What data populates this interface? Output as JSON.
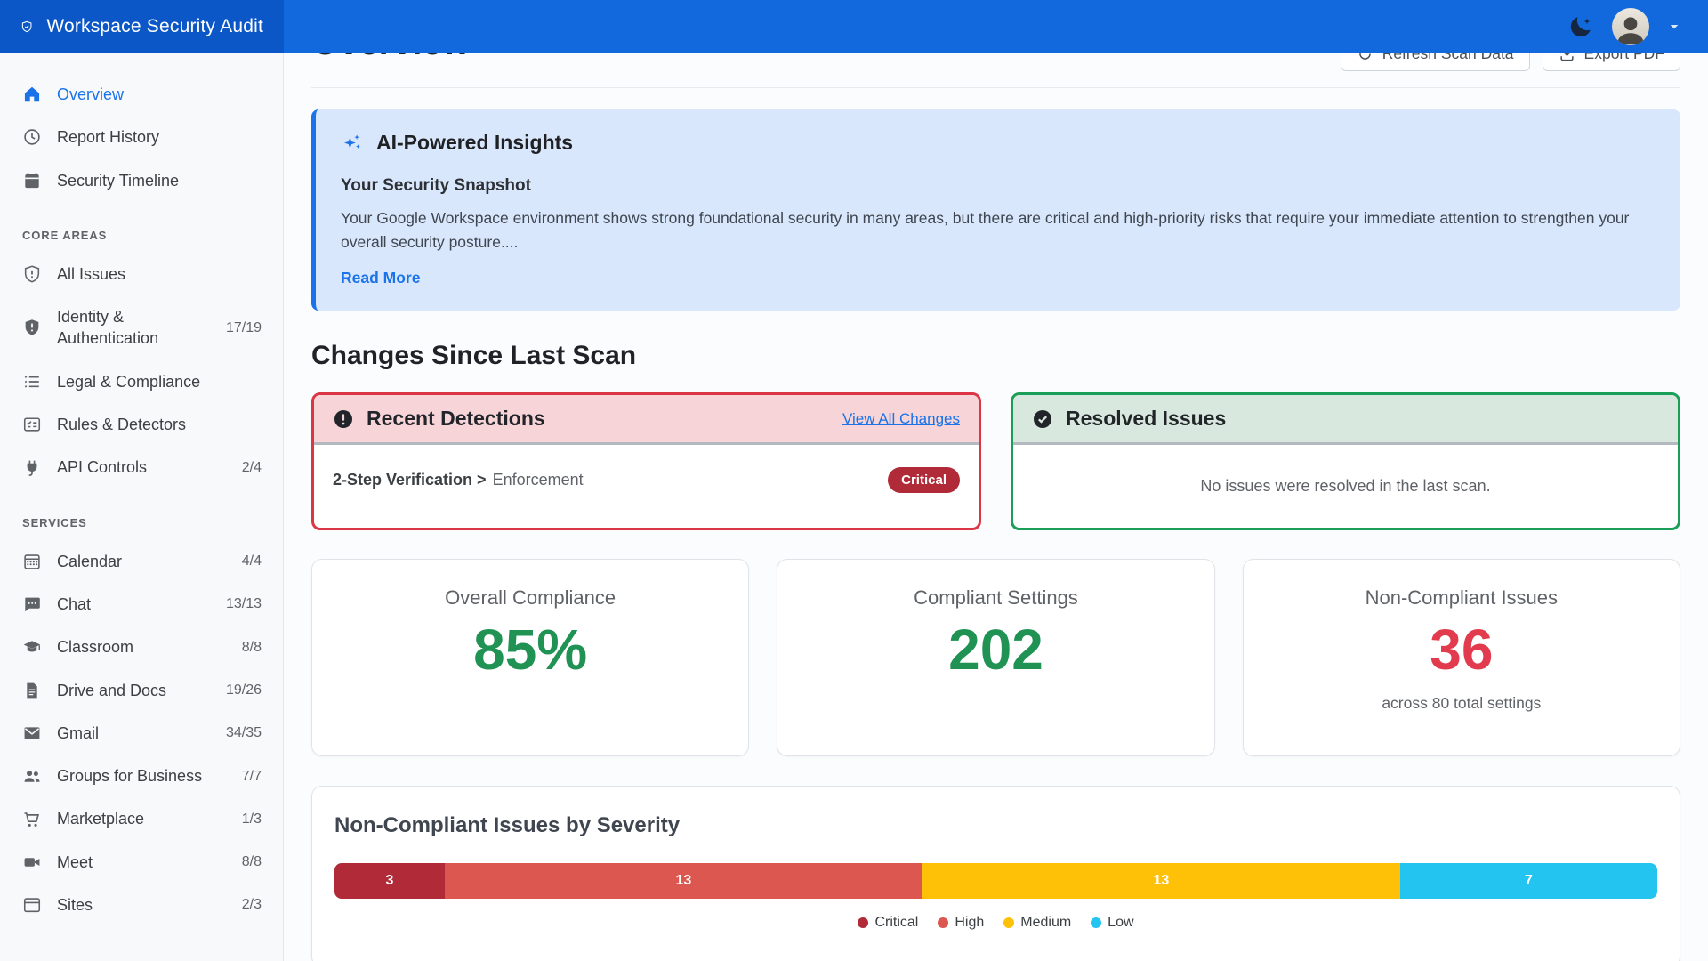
{
  "app": {
    "title": "Workspace Security Audit",
    "logo_icon": "shield-check"
  },
  "topbar": {
    "theme_icon": "moon",
    "caret_icon": "caret-down"
  },
  "sidebar": {
    "items": [
      {
        "icon": "home",
        "label": "Overview",
        "active": true
      },
      {
        "icon": "clock",
        "label": "Report History"
      },
      {
        "icon": "calendar",
        "label": "Security Timeline"
      },
      {
        "header": "CORE AREAS"
      },
      {
        "icon": "shield-exclamation",
        "label": "All Issues"
      },
      {
        "icon": "shield-filled",
        "label": "Identity & Authentication",
        "count": "17/19"
      },
      {
        "icon": "list",
        "label": "Legal & Compliance"
      },
      {
        "icon": "card-checklist",
        "label": "Rules & Detectors"
      },
      {
        "icon": "plug",
        "label": "API Controls",
        "count": "2/4"
      },
      {
        "header": "SERVICES"
      },
      {
        "icon": "calendar-grid",
        "label": "Calendar",
        "count": "4/4"
      },
      {
        "icon": "chat",
        "label": "Chat",
        "count": "13/13"
      },
      {
        "icon": "mortarboard",
        "label": "Classroom",
        "count": "8/8"
      },
      {
        "icon": "file",
        "label": "Drive and Docs",
        "count": "19/26"
      },
      {
        "icon": "envelope",
        "label": "Gmail",
        "count": "34/35"
      },
      {
        "icon": "people",
        "label": "Groups for Business",
        "count": "7/7"
      },
      {
        "icon": "cart",
        "label": "Marketplace",
        "count": "1/3"
      },
      {
        "icon": "video",
        "label": "Meet",
        "count": "8/8"
      },
      {
        "icon": "window",
        "label": "Sites",
        "count": "2/3"
      }
    ]
  },
  "main": {
    "title": "Overview",
    "refresh_label": "Refresh Scan Data",
    "refresh_icon": "refresh",
    "export_label": "Export PDF",
    "export_icon": "download",
    "ai_card": {
      "icon": "sparkle",
      "title": "AI-Powered Insights",
      "subtitle": "Your Security Snapshot",
      "body": "Your Google Workspace environment shows strong foundational security in many areas, but there are critical and high-priority risks that require your immediate attention to strengthen your overall security posture....",
      "read_more": "Read More"
    },
    "changes_heading": "Changes Since Last Scan",
    "detections": {
      "icon": "exclamation-circle",
      "title": "Recent Detections",
      "link": "View All Changes",
      "item": {
        "setting": "2-Step Verification >",
        "subsetting": "Enforcement",
        "badge": "Critical"
      }
    },
    "resolved": {
      "icon": "seal-check",
      "title": "Resolved Issues",
      "empty": "No issues were resolved in the last scan."
    },
    "stats": [
      {
        "label": "Overall Compliance",
        "value": "85%",
        "color": "#1f9254"
      },
      {
        "label": "Compliant Settings",
        "value": "202",
        "color": "#1f9254"
      },
      {
        "label": "Non-Compliant Issues",
        "value": "36",
        "color": "#e23b4e",
        "note": "across 80 total settings"
      }
    ]
  },
  "chart_data": {
    "type": "bar",
    "stacked": true,
    "title": "Non-Compliant Issues by Severity",
    "categories": [
      "Non-Compliant Issues"
    ],
    "series": [
      {
        "name": "Critical",
        "values": [
          3
        ],
        "color": "#b02a37"
      },
      {
        "name": "High",
        "values": [
          13
        ],
        "color": "#dc5750"
      },
      {
        "name": "Medium",
        "values": [
          13
        ],
        "color": "#ffc107"
      },
      {
        "name": "Low",
        "values": [
          7
        ],
        "color": "#24c4f0"
      }
    ],
    "total": 36,
    "legend_position": "bottom"
  }
}
